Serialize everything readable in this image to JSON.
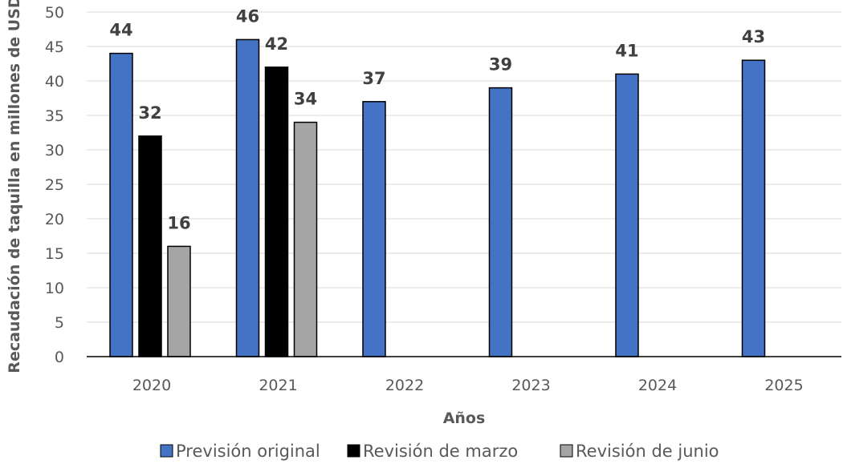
{
  "chart_data": {
    "type": "bar",
    "title": "",
    "xlabel": "Años",
    "ylabel": "Recaudación de taquilla en millones de USD",
    "ylim": [
      0,
      50
    ],
    "yticks": [
      0,
      5,
      10,
      15,
      20,
      25,
      30,
      35,
      40,
      45,
      50
    ],
    "categories": [
      "2020",
      "2021",
      "2022",
      "2023",
      "2024",
      "2025"
    ],
    "grid": true,
    "legend_position": "bottom",
    "series": [
      {
        "name": "Previsión original",
        "color": "#4472C4",
        "values": [
          44,
          46,
          37,
          39,
          41,
          43
        ]
      },
      {
        "name": "Revisión de marzo",
        "color": "#000000",
        "values": [
          32,
          42,
          null,
          null,
          null,
          null
        ]
      },
      {
        "name": "Revisión de junio",
        "color": "#A5A5A5",
        "values": [
          16,
          34,
          null,
          null,
          null,
          null
        ]
      }
    ]
  }
}
